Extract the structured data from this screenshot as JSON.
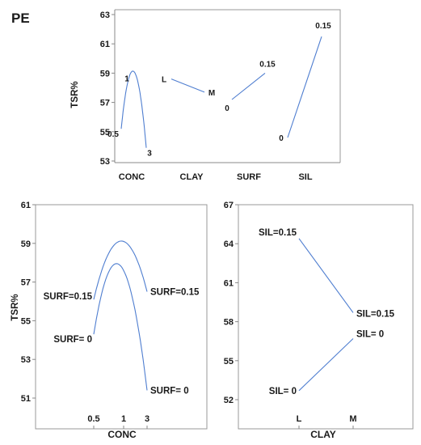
{
  "chart_data": [
    {
      "type": "line",
      "title": "PE",
      "ylabel": "TSR%",
      "ylim": [
        53,
        63
      ],
      "yticks": [
        "53",
        "55",
        "57",
        "59",
        "61",
        "63"
      ],
      "grid": false,
      "factors": [
        {
          "name": "CONC",
          "levels": [
            "0.5",
            "1",
            "3"
          ],
          "values": [
            55.2,
            58.1,
            53.9
          ],
          "curve": "quadratic"
        },
        {
          "name": "CLAY",
          "levels": [
            "L",
            "M"
          ],
          "values": [
            58.6,
            57.7
          ]
        },
        {
          "name": "SURF",
          "levels": [
            "0",
            "0.15"
          ],
          "values": [
            57.2,
            59.0
          ]
        },
        {
          "name": "SIL",
          "levels": [
            "0",
            "0.15"
          ],
          "values": [
            54.6,
            61.5
          ]
        }
      ]
    },
    {
      "type": "line",
      "xlabel": "CONC",
      "ylabel": "TSR%",
      "ylim": [
        51,
        61
      ],
      "yticks": [
        "51",
        "53",
        "55",
        "57",
        "59",
        "61"
      ],
      "xticks": [
        "0.5",
        "1",
        "3"
      ],
      "grid": false,
      "series": [
        {
          "name": "SURF=0.15",
          "start_label": "SURF=0.15",
          "end_label": "SURF=0.15",
          "x": [
            0.5,
            1,
            3
          ],
          "values": [
            56.1,
            59.1,
            56.5
          ],
          "curve": "quadratic"
        },
        {
          "name": "SURF= 0",
          "start_label": "SURF= 0",
          "end_label": "SURF= 0",
          "x": [
            0.5,
            1,
            3
          ],
          "values": [
            54.3,
            57.6,
            51.4
          ],
          "curve": "quadratic"
        }
      ]
    },
    {
      "type": "line",
      "xlabel": "CLAY",
      "ylim": [
        52,
        67
      ],
      "yticks": [
        "52",
        "55",
        "58",
        "61",
        "64",
        "67"
      ],
      "categories": [
        "L",
        "M"
      ],
      "grid": false,
      "series": [
        {
          "name": "SIL=0.15",
          "start_label": "SIL=0.15",
          "end_label": "SIL=0.15",
          "values": [
            64.4,
            58.7
          ]
        },
        {
          "name": "SIL= 0",
          "start_label": "SIL= 0",
          "end_label": "SIL= 0",
          "values": [
            52.7,
            56.7
          ]
        }
      ]
    }
  ]
}
